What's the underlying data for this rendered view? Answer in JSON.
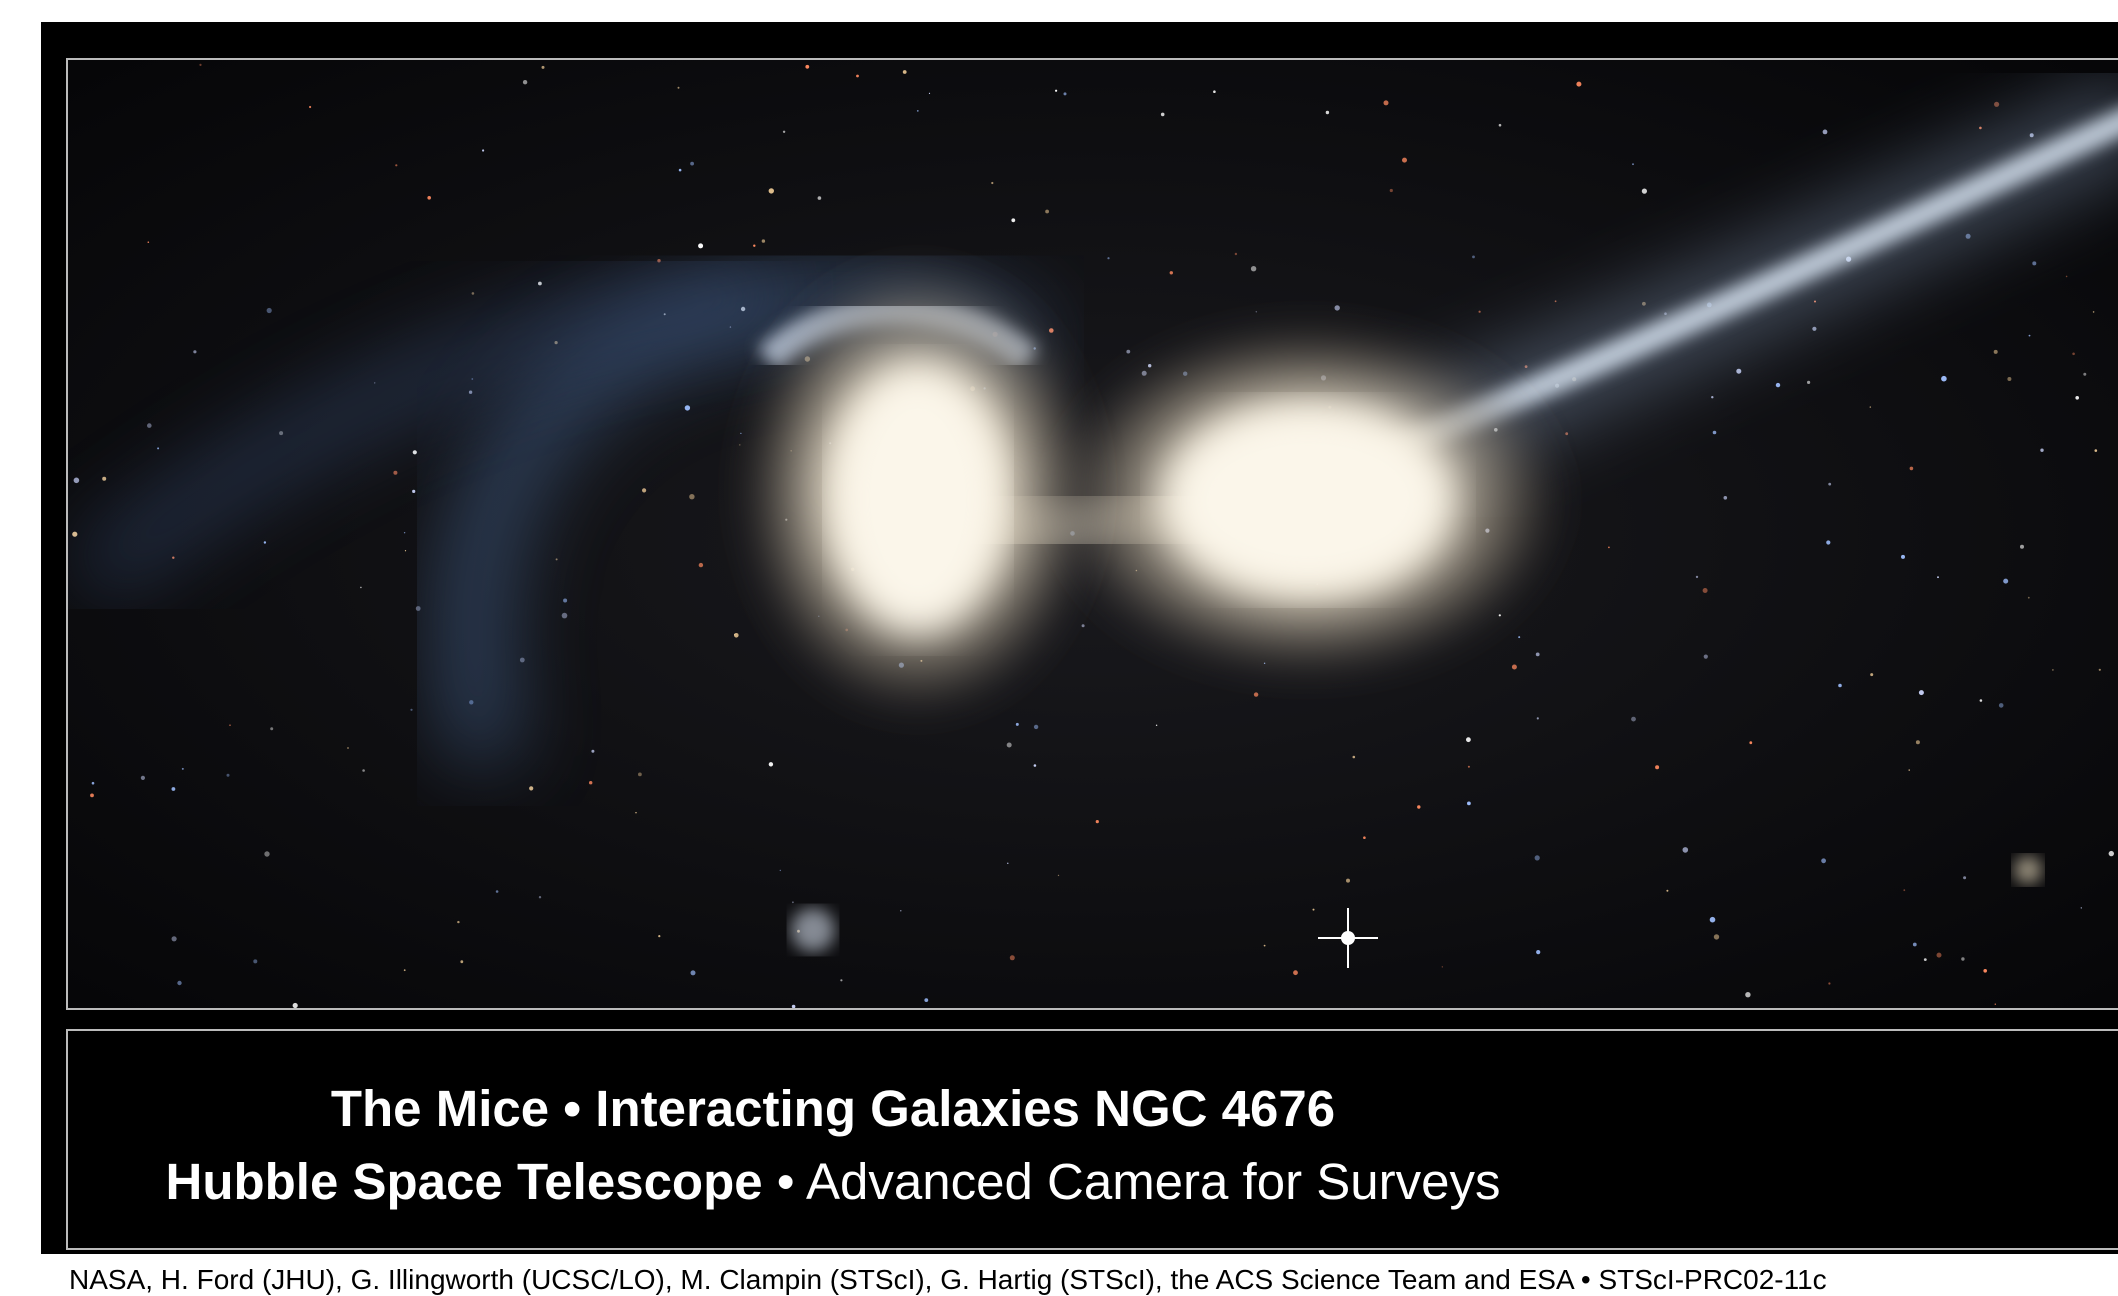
{
  "caption": {
    "title": "The Mice • Interacting Galaxies NGC 4676",
    "subtitle_bold": "Hubble Space Telescope",
    "subtitle_regular": "• Advanced Camera for Surveys"
  },
  "credit": "NASA, H. Ford (JHU), G. Illingworth (UCSC/LO), M. Clampin (STScI), G. Hartig (STScI), the ACS Science Team and ESA • STScI-PRC02-11c"
}
